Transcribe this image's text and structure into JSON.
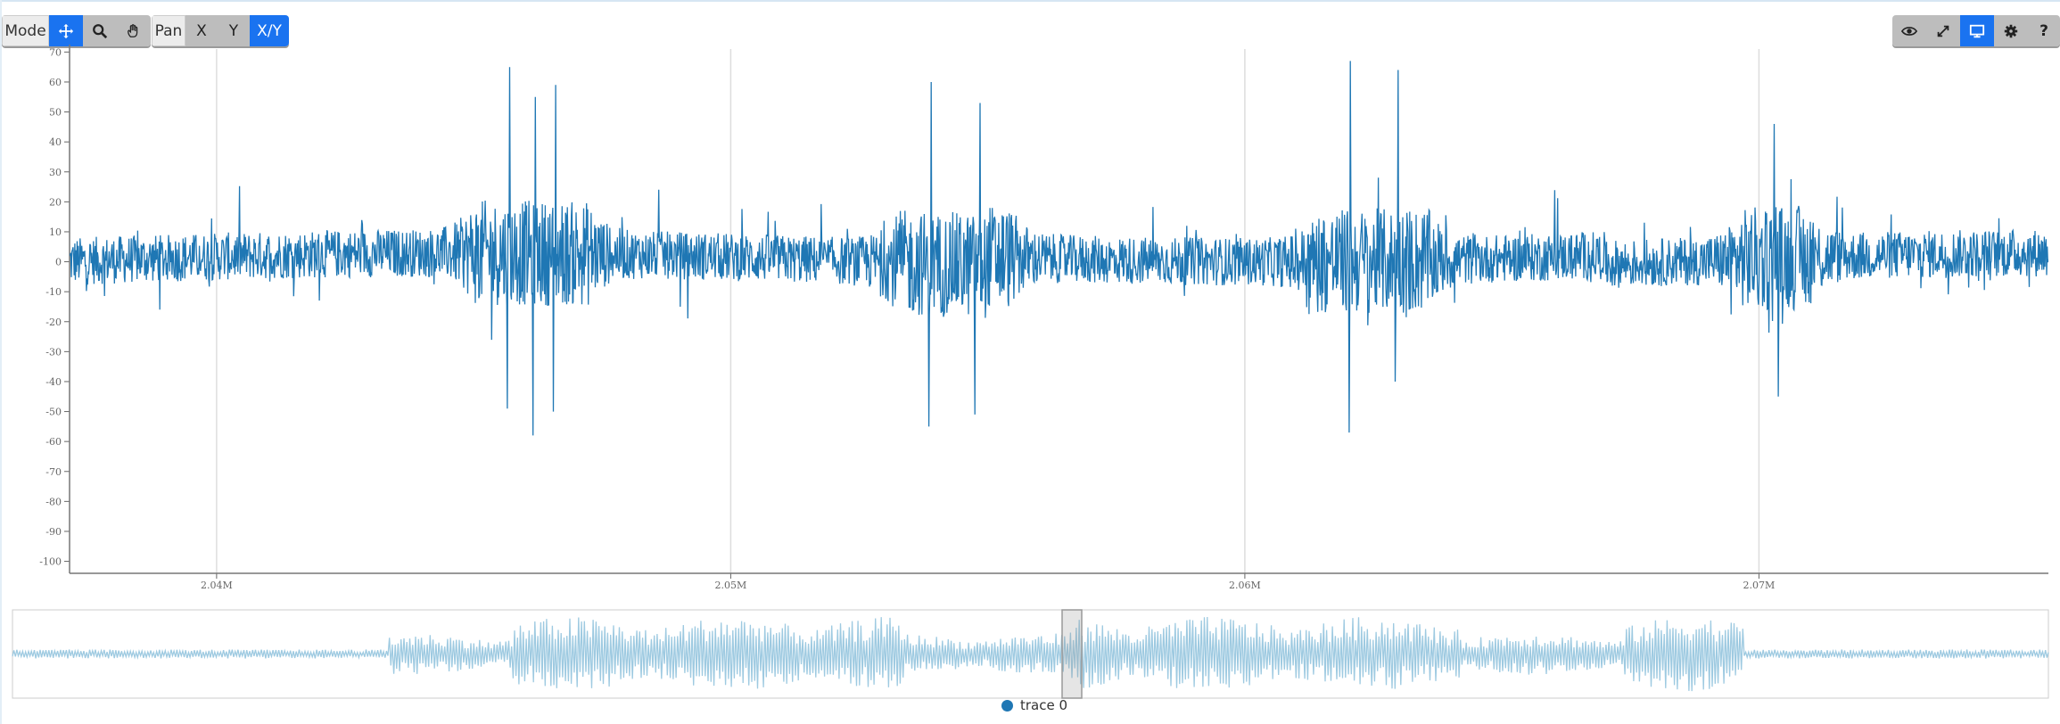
{
  "toolbar": {
    "mode_label": "Mode",
    "mode_buttons": [
      {
        "icon": "move-icon",
        "active": true
      },
      {
        "icon": "zoom-icon",
        "active": false
      },
      {
        "icon": "hand-icon",
        "active": false
      }
    ],
    "pan_label": "Pan",
    "pan_buttons": [
      {
        "label": "X",
        "active": false
      },
      {
        "label": "Y",
        "active": false
      },
      {
        "label": "X/Y",
        "active": true
      }
    ],
    "right_buttons": [
      {
        "icon": "eye-icon",
        "active": false
      },
      {
        "icon": "expand-icon",
        "active": false
      },
      {
        "icon": "monitor-icon",
        "active": true
      },
      {
        "icon": "gear-icon",
        "active": false
      },
      {
        "icon": "help-icon",
        "active": false
      }
    ]
  },
  "colors": {
    "accent": "#1a73f0",
    "trace": "#1f77b4",
    "navigator_trace": "#9ecae1",
    "grid": "#dddddd"
  },
  "chart_data": {
    "type": "line",
    "title": "",
    "xlabel": "",
    "ylabel": "",
    "xlim": [
      2037140,
      2075630
    ],
    "ylim": [
      -104,
      71
    ],
    "x_ticks": [
      {
        "value": 2040000,
        "label": "2.04M"
      },
      {
        "value": 2050000,
        "label": "2.05M"
      },
      {
        "value": 2060000,
        "label": "2.06M"
      },
      {
        "value": 2070000,
        "label": "2.07M"
      }
    ],
    "y_ticks": [
      70,
      60,
      50,
      40,
      30,
      20,
      10,
      0,
      -10,
      -20,
      -30,
      -40,
      -50,
      -60,
      -70,
      -80,
      -90,
      -100
    ],
    "grid": {
      "x": true,
      "y": false
    },
    "series": [
      {
        "name": "trace 0",
        "baseline_noise_amplitude": 8,
        "notable_points": [
          [
            2045700,
            65
          ],
          [
            2046150,
            -58
          ],
          [
            2046200,
            55
          ],
          [
            2046600,
            59
          ],
          [
            2046550,
            -50
          ],
          [
            2045650,
            -49
          ],
          [
            2053900,
            60
          ],
          [
            2053850,
            -55
          ],
          [
            2054850,
            53
          ],
          [
            2054750,
            -51
          ],
          [
            2062050,
            67
          ],
          [
            2062980,
            64
          ],
          [
            2062030,
            -57
          ],
          [
            2062930,
            -40
          ],
          [
            2070300,
            46
          ],
          [
            2070380,
            -45
          ]
        ]
      }
    ],
    "navigator": {
      "selected_range": [
        2037140,
        2075630
      ]
    },
    "legend": {
      "position": "bottom",
      "entries": [
        "trace 0"
      ]
    }
  }
}
